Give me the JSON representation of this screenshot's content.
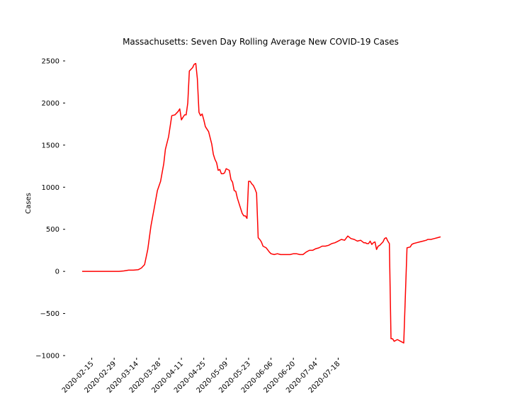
{
  "chart_data": {
    "type": "line",
    "title": "Massachusetts: Seven Day Rolling Average New COVID-19 Cases",
    "xlabel": "",
    "ylabel": "Cases",
    "ylim": [
      -1000,
      2500
    ],
    "yticks": [
      -1000,
      -500,
      0,
      500,
      1000,
      1500,
      2000,
      2500
    ],
    "xticks": [
      "2020-02-15",
      "2020-02-29",
      "2020-03-14",
      "2020-03-28",
      "2020-04-11",
      "2020-04-25",
      "2020-05-09",
      "2020-05-23",
      "2020-06-06",
      "2020-06-20",
      "2020-07-04",
      "2020-07-18"
    ],
    "grid": false,
    "line_color": "#ff0000",
    "series": [
      {
        "x": [
          "2020-02-09",
          "2020-02-16",
          "2020-02-23",
          "2020-03-01",
          "2020-03-03",
          "2020-03-06",
          "2020-03-09",
          "2020-03-12",
          "2020-03-15",
          "2020-03-17",
          "2020-03-19",
          "2020-03-21",
          "2020-03-23",
          "2020-03-25",
          "2020-03-27",
          "2020-03-29",
          "2020-03-31",
          "2020-04-01",
          "2020-04-03",
          "2020-04-05",
          "2020-04-07",
          "2020-04-09",
          "2020-04-10",
          "2020-04-11",
          "2020-04-12",
          "2020-04-13",
          "2020-04-14",
          "2020-04-15",
          "2020-04-16",
          "2020-04-17",
          "2020-04-18",
          "2020-04-19",
          "2020-04-20",
          "2020-04-21",
          "2020-04-22",
          "2020-04-23",
          "2020-04-24",
          "2020-04-25",
          "2020-04-26",
          "2020-04-27",
          "2020-04-28",
          "2020-04-30",
          "2020-05-01",
          "2020-05-02",
          "2020-05-03",
          "2020-05-04",
          "2020-05-05",
          "2020-05-06",
          "2020-05-07",
          "2020-05-08",
          "2020-05-09",
          "2020-05-11",
          "2020-05-12",
          "2020-05-13",
          "2020-05-14",
          "2020-05-15",
          "2020-05-16",
          "2020-05-18",
          "2020-05-19",
          "2020-05-20",
          "2020-05-21",
          "2020-05-22",
          "2020-05-23",
          "2020-05-24",
          "2020-05-25",
          "2020-05-26",
          "2020-05-27",
          "2020-05-28",
          "2020-05-29",
          "2020-05-30",
          "2020-05-31",
          "2020-06-01",
          "2020-06-03",
          "2020-06-05",
          "2020-06-06",
          "2020-06-08",
          "2020-06-10",
          "2020-06-12",
          "2020-06-14",
          "2020-06-16",
          "2020-06-18",
          "2020-06-20",
          "2020-06-22",
          "2020-06-24",
          "2020-06-26",
          "2020-06-28",
          "2020-06-30",
          "2020-07-02",
          "2020-07-04",
          "2020-07-06",
          "2020-07-08",
          "2020-07-10",
          "2020-07-12",
          "2020-07-14",
          "2020-07-16",
          "2020-07-18",
          "2020-07-20",
          "2020-07-22",
          "2020-07-24",
          "2020-07-26",
          "2020-07-28",
          "2020-07-30",
          "2020-08-01",
          "2020-08-03",
          "2020-08-04",
          "2020-08-05",
          "2020-08-06",
          "2020-08-07",
          "2020-08-08",
          "2020-08-09",
          "2020-08-10",
          "2020-08-11",
          "2020-08-12",
          "2020-08-13",
          "2020-08-14",
          "2020-08-15",
          "2020-08-16",
          "2020-08-17",
          "2020-08-18",
          "2020-08-19",
          "2020-08-20",
          "2020-08-21",
          "2020-08-22",
          "2020-08-24",
          "2020-08-26",
          "2020-08-28",
          "2020-08-30",
          "2020-09-01",
          "2020-09-02",
          "2020-09-03",
          "2020-09-05",
          "2020-09-07",
          "2020-09-09",
          "2020-09-11",
          "2020-09-12",
          "2020-09-14",
          "2020-09-16",
          "2020-09-18",
          "2020-09-20"
        ],
        "y": [
          0,
          0,
          0,
          0,
          0,
          5,
          15,
          15,
          20,
          40,
          80,
          260,
          540,
          750,
          960,
          1070,
          1280,
          1450,
          1600,
          1850,
          1860,
          1900,
          1930,
          1800,
          1830,
          1860,
          1860,
          2000,
          2380,
          2400,
          2420,
          2460,
          2470,
          2290,
          1890,
          1850,
          1870,
          1800,
          1720,
          1690,
          1660,
          1510,
          1390,
          1330,
          1290,
          1200,
          1210,
          1160,
          1160,
          1170,
          1220,
          1200,
          1090,
          1060,
          960,
          950,
          870,
          750,
          690,
          660,
          660,
          630,
          1070,
          1070,
          1040,
          1020,
          980,
          930,
          400,
          380,
          350,
          300,
          280,
          230,
          210,
          200,
          210,
          200,
          200,
          200,
          200,
          210,
          210,
          200,
          200,
          230,
          250,
          250,
          270,
          280,
          300,
          300,
          310,
          330,
          340,
          360,
          380,
          370,
          420,
          390,
          380,
          360,
          370,
          340,
          340,
          330,
          330,
          360,
          320,
          340,
          350,
          260,
          300,
          310,
          330,
          350,
          390,
          400,
          360,
          330,
          -800,
          -800,
          -830,
          -810,
          -830,
          -850,
          280,
          290,
          320,
          330,
          340,
          350,
          360,
          370,
          380,
          380,
          390,
          400,
          410
        ]
      }
    ]
  }
}
